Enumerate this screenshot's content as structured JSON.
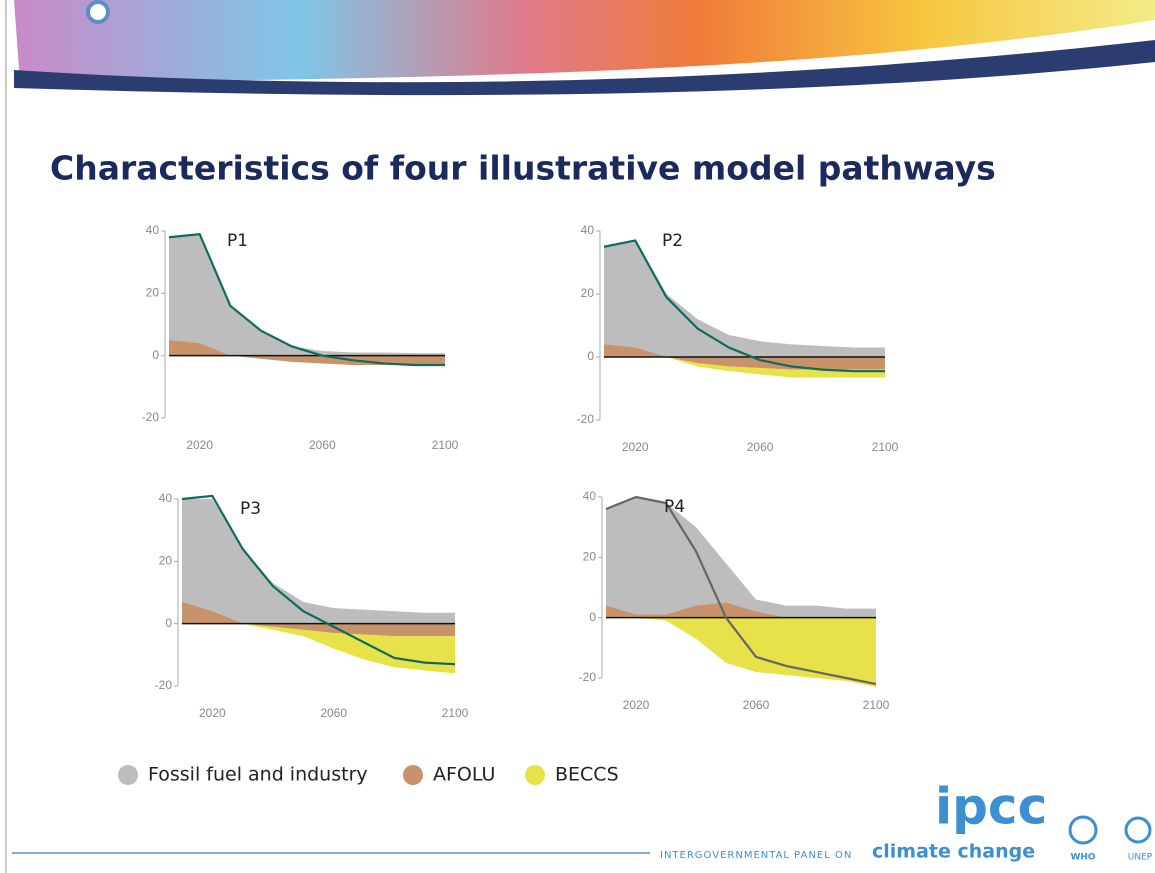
{
  "title": "Characteristics of four illustrative model pathways",
  "legend": [
    {
      "label": "Fossil fuel and industry",
      "color": "#bdbdbd"
    },
    {
      "label": "AFOLU",
      "color": "#c8926a"
    },
    {
      "label": "BECCS",
      "color": "#e8e24a"
    }
  ],
  "chart_data": [
    {
      "type": "area",
      "title": "P1",
      "x": [
        2010,
        2020,
        2030,
        2040,
        2050,
        2060,
        2070,
        2080,
        2090,
        2100
      ],
      "xlim": [
        2010,
        2100
      ],
      "xticks": [
        2020,
        2060,
        2100
      ],
      "ylim": [
        -20,
        40
      ],
      "yticks": [
        -20,
        0,
        20,
        40
      ],
      "series": [
        {
          "color": "#bdbdbd",
          "values": [
            38,
            39,
            16,
            8,
            3,
            1.5,
            1,
            1,
            0.8,
            0.8
          ]
        },
        {
          "color": "#c8926a",
          "values": [
            5,
            4,
            0,
            -1,
            -2,
            -2.5,
            -3,
            -3,
            -3,
            -3
          ]
        },
        {
          "color": "#e8e24a",
          "values": [
            0,
            0,
            0,
            0,
            0,
            0,
            0,
            0,
            0,
            0
          ]
        }
      ],
      "line": {
        "color": "#0e6b5e",
        "values": [
          38,
          39,
          16,
          8,
          3,
          0,
          -1.5,
          -2.5,
          -3,
          -3
        ]
      }
    },
    {
      "type": "area",
      "title": "P2",
      "x": [
        2010,
        2020,
        2030,
        2040,
        2050,
        2060,
        2070,
        2080,
        2090,
        2100
      ],
      "xlim": [
        2010,
        2100
      ],
      "xticks": [
        2020,
        2060,
        2100
      ],
      "ylim": [
        -20,
        40
      ],
      "yticks": [
        -20,
        0,
        20,
        40
      ],
      "series": [
        {
          "color": "#bdbdbd",
          "values": [
            35,
            37,
            20,
            12,
            7,
            5,
            4,
            3.5,
            3,
            3
          ]
        },
        {
          "color": "#c8926a",
          "values": [
            4,
            3,
            0,
            -2,
            -3,
            -3.5,
            -4,
            -4,
            -4,
            -4
          ]
        },
        {
          "color": "#e8e24a",
          "values": [
            0,
            0,
            0,
            -1,
            -1.5,
            -2,
            -2.5,
            -2.5,
            -2.5,
            -2.5
          ]
        }
      ],
      "line": {
        "color": "#0e6b5e",
        "values": [
          35,
          37,
          19,
          9,
          3,
          -1,
          -3,
          -4,
          -4.5,
          -4.5
        ]
      }
    },
    {
      "type": "area",
      "title": "P3",
      "x": [
        2010,
        2020,
        2030,
        2040,
        2050,
        2060,
        2070,
        2080,
        2090,
        2100
      ],
      "xlim": [
        2010,
        2100
      ],
      "xticks": [
        2020,
        2060,
        2100
      ],
      "ylim": [
        -20,
        40
      ],
      "yticks": [
        -20,
        0,
        20,
        40
      ],
      "series": [
        {
          "color": "#bdbdbd",
          "values": [
            40,
            40,
            24,
            13,
            7,
            5,
            4.5,
            4,
            3.5,
            3.5
          ]
        },
        {
          "color": "#c8926a",
          "values": [
            7,
            4,
            0,
            -1,
            -2,
            -3,
            -3.5,
            -4,
            -4,
            -4
          ]
        },
        {
          "color": "#e8e24a",
          "values": [
            0,
            0,
            0,
            -1,
            -2,
            -5,
            -8,
            -10,
            -11,
            -12
          ]
        }
      ],
      "line": {
        "color": "#0e6b5e",
        "values": [
          40,
          41,
          24,
          12,
          4,
          -1,
          -6,
          -11,
          -12.5,
          -13
        ]
      }
    },
    {
      "type": "area",
      "title": "P4",
      "x": [
        2010,
        2020,
        2030,
        2040,
        2050,
        2060,
        2070,
        2080,
        2090,
        2100
      ],
      "xlim": [
        2010,
        2100
      ],
      "xticks": [
        2020,
        2060,
        2100
      ],
      "ylim": [
        -20,
        40
      ],
      "yticks": [
        -20,
        0,
        20,
        40
      ],
      "series": [
        {
          "color": "#bdbdbd",
          "values": [
            36,
            40,
            38,
            30,
            18,
            6,
            4,
            4,
            3,
            3
          ]
        },
        {
          "color": "#c8926a",
          "values": [
            4,
            1,
            1,
            4,
            5,
            2,
            0,
            0,
            0,
            0
          ]
        },
        {
          "color": "#e8e24a",
          "values": [
            0,
            0,
            -1,
            -7,
            -15,
            -18,
            -19,
            -20,
            -21,
            -23
          ]
        }
      ],
      "line": {
        "color": "#666666",
        "values": [
          36,
          40,
          38,
          22,
          0,
          -13,
          -16,
          -18,
          -20,
          -22
        ]
      }
    }
  ],
  "footer": {
    "logo": "ipcc",
    "panel": "INTERGOVERNMENTAL PANEL ON",
    "climate": "climate change",
    "who": "WHO",
    "unep": "UNEP"
  }
}
